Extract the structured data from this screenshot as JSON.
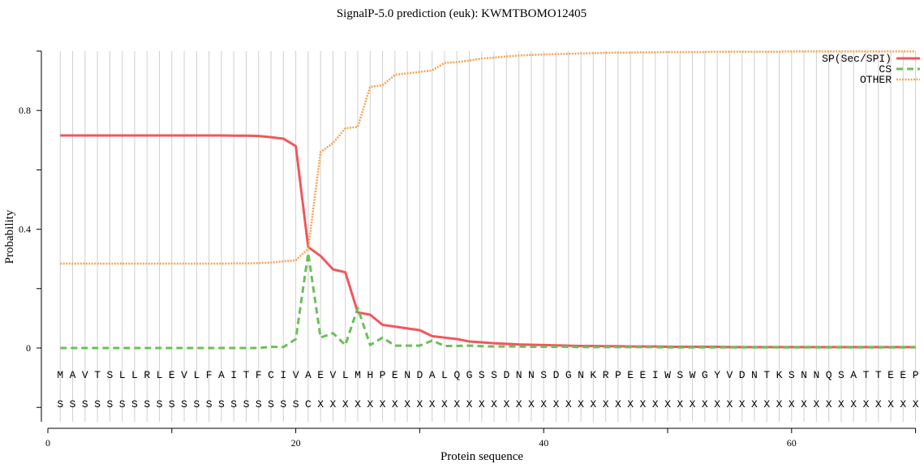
{
  "chart_data": {
    "type": "line",
    "title": "SignalP-5.0 prediction (euk):  KWMTBOMO12405",
    "xlabel": "Protein sequence",
    "ylabel": "Probability",
    "xlim": [
      0,
      70
    ],
    "ylim": [
      -0.25,
      1.0
    ],
    "x_ticks": [
      0,
      10,
      20,
      30,
      40,
      50,
      60,
      70
    ],
    "x_tick_labels": [
      "0",
      "",
      "20",
      "",
      "40",
      "",
      "60",
      ""
    ],
    "y_ticks": [
      -0.2,
      0,
      0.2,
      0.4,
      0.6,
      0.8,
      1.0
    ],
    "y_tick_labels": [
      "",
      "0",
      "",
      "0.4",
      "",
      "0.8",
      ""
    ],
    "grid": "vertical per residue",
    "legend_placement": "top-right",
    "sequence": "MAVTSLLRLEVLFAITFCIVAEVLMHPENDALQGSSDNNSDGNKRPEEIWSWGYVDNTKSNNQSATTEEP",
    "labels": "SSSSSSSSSSSSSSSSSSSSCXXXXXXXXXXXXXXXXXXXXXXXXXXXXXXXXXXXXXXXXXXXXXXXXX",
    "series": [
      {
        "name": "SP(Sec/SPI)",
        "color": "#f0575c",
        "style": "solid",
        "values": [
          0.716,
          0.716,
          0.716,
          0.716,
          0.716,
          0.716,
          0.716,
          0.716,
          0.716,
          0.716,
          0.716,
          0.716,
          0.716,
          0.716,
          0.715,
          0.715,
          0.714,
          0.71,
          0.705,
          0.68,
          0.34,
          0.31,
          0.265,
          0.255,
          0.12,
          0.112,
          0.078,
          0.072,
          0.066,
          0.06,
          0.04,
          0.035,
          0.03,
          0.022,
          0.019,
          0.016,
          0.014,
          0.012,
          0.011,
          0.01,
          0.009,
          0.008,
          0.007,
          0.007,
          0.006,
          0.006,
          0.005,
          0.005,
          0.005,
          0.004,
          0.004,
          0.004,
          0.004,
          0.004,
          0.003,
          0.003,
          0.003,
          0.003,
          0.003,
          0.003,
          0.003,
          0.003,
          0.003,
          0.003,
          0.003,
          0.003,
          0.003,
          0.003,
          0.003,
          0.003
        ]
      },
      {
        "name": "CS",
        "color": "#6cbf5a",
        "style": "dashed",
        "values": [
          0,
          0,
          0,
          0,
          0,
          0,
          0,
          0,
          0,
          0,
          0,
          0,
          0,
          0,
          0,
          0,
          0,
          0.004,
          0.003,
          0.03,
          0.32,
          0.035,
          0.05,
          0.01,
          0.135,
          0.01,
          0.035,
          0.008,
          0.008,
          0.008,
          0.025,
          0.007,
          0.007,
          0.008,
          0.006,
          0.005,
          0.005,
          0.005,
          0.004,
          0.004,
          0.004,
          0.004,
          0.003,
          0.003,
          0.003,
          0.003,
          0.003,
          0.003,
          0.003,
          0.002,
          0.002,
          0.002,
          0.002,
          0.002,
          0.002,
          0.002,
          0.002,
          0.002,
          0.002,
          0.002,
          0.002,
          0.002,
          0.002,
          0.002,
          0.002,
          0.002,
          0.002,
          0.002,
          0.002,
          0.002
        ]
      },
      {
        "name": "OTHER",
        "color": "#f7a24f",
        "style": "dotted",
        "values": [
          0.284,
          0.284,
          0.284,
          0.284,
          0.284,
          0.284,
          0.284,
          0.284,
          0.284,
          0.284,
          0.284,
          0.284,
          0.284,
          0.284,
          0.285,
          0.285,
          0.286,
          0.288,
          0.292,
          0.295,
          0.335,
          0.66,
          0.69,
          0.74,
          0.745,
          0.88,
          0.885,
          0.92,
          0.925,
          0.93,
          0.935,
          0.96,
          0.963,
          0.968,
          0.975,
          0.978,
          0.982,
          0.985,
          0.987,
          0.989,
          0.99,
          0.991,
          0.992,
          0.993,
          0.994,
          0.995,
          0.995,
          0.996,
          0.996,
          0.997,
          0.997,
          0.997,
          0.997,
          0.998,
          0.998,
          0.998,
          0.998,
          0.998,
          0.998,
          0.999,
          0.999,
          0.999,
          0.999,
          0.999,
          0.999,
          0.999,
          0.999,
          0.999,
          0.999,
          0.999
        ]
      }
    ]
  }
}
